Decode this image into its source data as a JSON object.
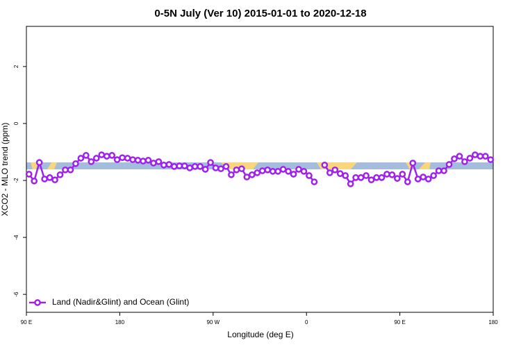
{
  "chart_data": {
    "type": "line",
    "title": "0-5N July (Ver 10)   2015-01-01 to 2020-12-18",
    "x_label": "Longitude (deg E)",
    "y_label": "XCO2 - MLO trend (ppm)",
    "xlim": [
      90,
      540
    ],
    "ylim": [
      -6.63,
      3.41
    ],
    "xticks": [
      {
        "value": 90,
        "label": "90 E"
      },
      180,
      {
        "value": 270,
        "label": "90 W"
      },
      {
        "value": 360,
        "label": "0"
      },
      {
        "value": 450,
        "label": "90 E"
      },
      {
        "value": 540,
        "label": "180"
      }
    ],
    "yticks": [
      2,
      0,
      -2,
      -4,
      -6
    ],
    "legend": "bottom-left",
    "x": [
      92.5,
      97.5,
      102.5,
      107.5,
      112.5,
      117.5,
      122.5,
      127.5,
      132.5,
      137.5,
      142.5,
      147.5,
      152.5,
      157.5,
      162.5,
      167.5,
      172.5,
      177.5,
      182.5,
      187.5,
      192.5,
      197.5,
      202.5,
      207.5,
      212.5,
      217.5,
      222.5,
      227.5,
      232.5,
      237.5,
      242.5,
      247.5,
      252.5,
      257.5,
      262.5,
      267.5,
      272.5,
      277.5,
      282.5,
      287.5,
      292.5,
      297.5,
      302.5,
      307.5,
      312.5,
      317.5,
      322.5,
      327.5,
      332.5,
      337.5,
      342.5,
      347.5,
      352.5,
      357.5,
      362.5,
      367.5,
      372.5,
      377.5,
      382.5,
      387.5,
      392.5,
      397.5,
      402.5,
      407.5,
      412.5,
      417.5,
      422.5,
      427.5,
      432.5,
      437.5,
      442.5,
      447.5,
      452.5,
      457.5,
      462.5,
      467.5,
      472.5,
      477.5,
      482.5,
      487.5,
      492.5,
      497.5,
      502.5,
      507.5,
      512.5,
      517.5,
      522.5,
      527.5,
      532.5,
      537.5
    ],
    "series": [
      {
        "name": "Land (Nadir&Glint) and Ocean (Glint)",
        "color": "#a020f0",
        "values": [
          -1.78,
          -2.02,
          -1.37,
          -1.95,
          -1.9,
          -1.98,
          -1.8,
          -1.63,
          -1.63,
          -1.41,
          -1.22,
          -1.12,
          -1.34,
          -1.22,
          -1.1,
          -1.15,
          -1.12,
          -1.27,
          -1.2,
          -1.22,
          -1.27,
          -1.29,
          -1.32,
          -1.29,
          -1.39,
          -1.34,
          -1.46,
          -1.44,
          -1.51,
          -1.49,
          -1.49,
          -1.56,
          -1.51,
          -1.51,
          -1.61,
          -1.37,
          -1.56,
          -1.59,
          -1.51,
          -1.8,
          -1.63,
          -1.59,
          -1.88,
          -1.8,
          -1.73,
          -1.66,
          -1.63,
          -1.68,
          -1.68,
          -1.61,
          -1.68,
          -1.78,
          -1.61,
          -1.68,
          -1.83,
          -2.05,
          null,
          -1.46,
          -1.73,
          -1.63,
          -1.76,
          -1.83,
          -2.12,
          -1.9,
          -1.9,
          -1.83,
          -1.98,
          -1.9,
          -1.9,
          -1.78,
          -1.8,
          -1.93,
          -1.78,
          -2.05,
          -1.39,
          -1.95,
          -1.88,
          -1.95,
          -1.83,
          -1.66,
          -1.66,
          -1.44,
          -1.24,
          -1.15,
          -1.34,
          -1.22,
          -1.1,
          -1.15,
          -1.15,
          -1.27
        ]
      }
    ]
  }
}
